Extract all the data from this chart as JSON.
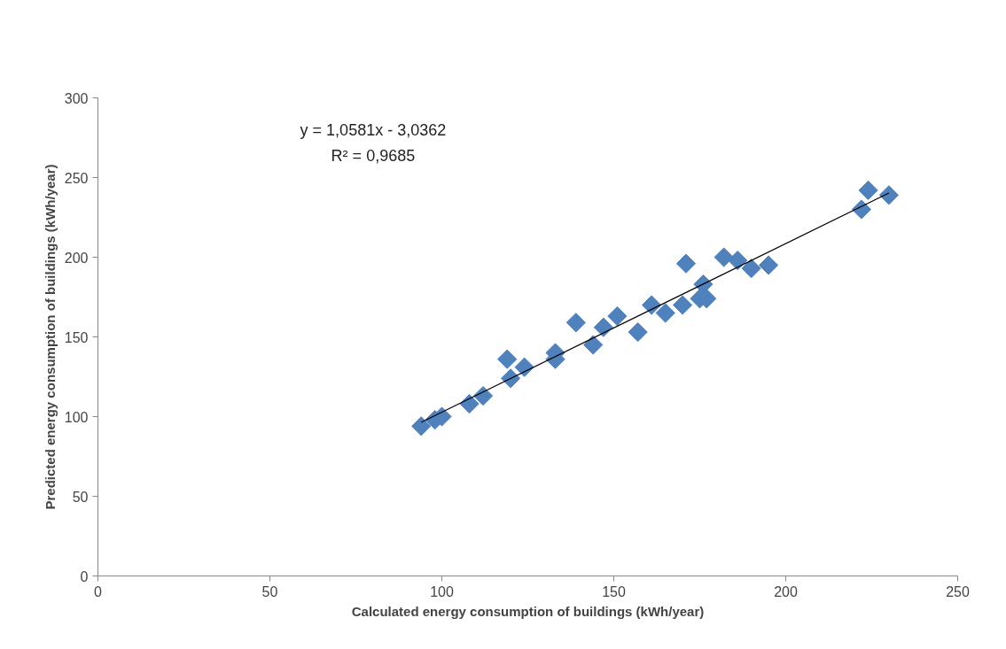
{
  "chart_data": {
    "type": "scatter",
    "xlabel": "Calculated energy consumption of buildings (kWh/year)",
    "ylabel": "Predicted energy consumption of buildings (kWh/year)",
    "xlim": [
      0,
      250
    ],
    "xticks": [
      0,
      50,
      100,
      150,
      200,
      250
    ],
    "ylim": [
      0,
      300
    ],
    "yticks": [
      0,
      50,
      100,
      150,
      200,
      250,
      300
    ],
    "grid": false,
    "annotations": [
      "y = 1,0581x - 3,0362",
      "R² = 0,9685"
    ],
    "series": [
      {
        "marker": "diamond",
        "color": "#4f81bd",
        "x": [
          94,
          98,
          100,
          108,
          112,
          119,
          120,
          124,
          133,
          133,
          139,
          144,
          147,
          151,
          157,
          161,
          165,
          170,
          171,
          175,
          176,
          177,
          182,
          186,
          190,
          195,
          222,
          224,
          230
        ],
        "values": [
          94,
          98,
          100,
          108,
          113,
          136,
          124,
          131,
          140,
          136,
          159,
          145,
          156,
          163,
          153,
          170,
          165,
          170,
          196,
          174,
          183,
          174,
          200,
          198,
          193,
          195,
          230,
          242,
          239
        ]
      },
      {
        "type": "line",
        "marker": "none",
        "color": "#000000",
        "x": [
          94,
          230
        ],
        "values": [
          96.4,
          240.3
        ]
      }
    ]
  }
}
